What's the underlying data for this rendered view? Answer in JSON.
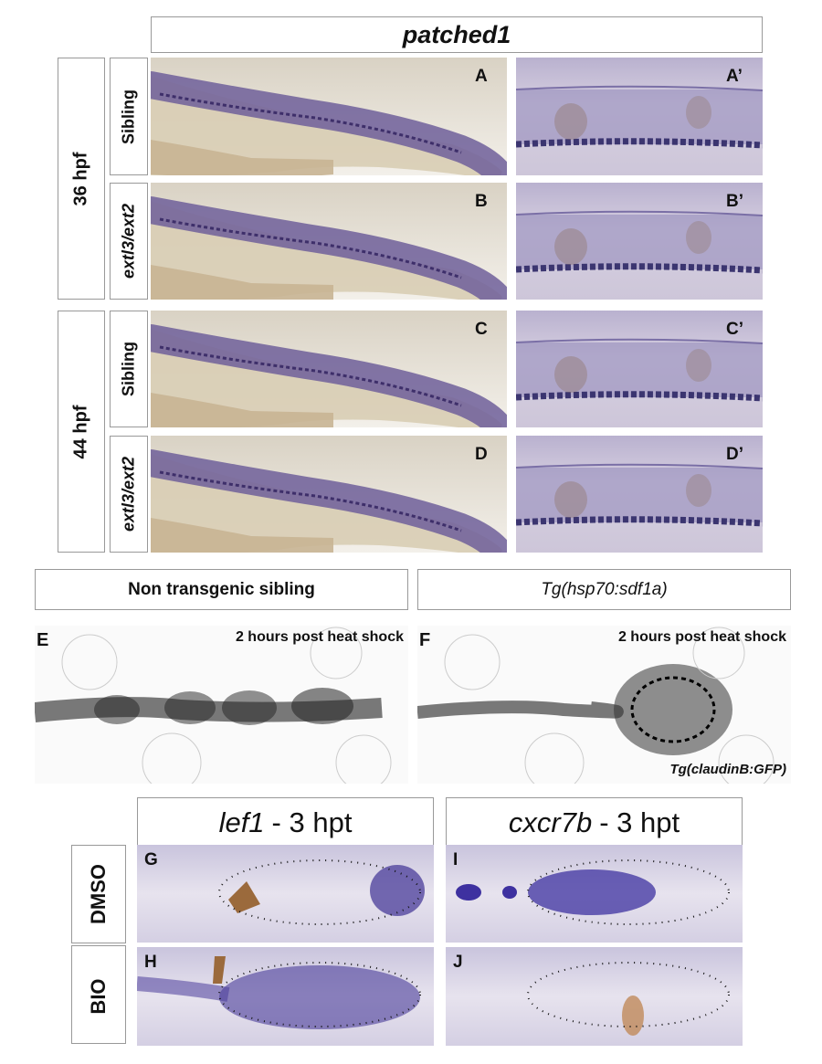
{
  "top": {
    "title": "patched1",
    "groups": [
      {
        "label": "36 hpf",
        "rows": [
          {
            "label": "Sibling",
            "panel": "A",
            "zoom": "A’"
          },
          {
            "label": "extl3/ext2",
            "panel": "B",
            "zoom": "B’"
          }
        ]
      },
      {
        "label": "44 hpf",
        "rows": [
          {
            "label": "Sibling",
            "panel": "C",
            "zoom": "C’"
          },
          {
            "label": "extl3/ext2",
            "panel": "D",
            "zoom": "D’"
          }
        ]
      }
    ]
  },
  "middle": {
    "columns": [
      {
        "header": "Non transgenic sibling",
        "panel": "E",
        "note": "2 hours post heat shock"
      },
      {
        "header": "Tg(hsp70:sdf1a)",
        "panel": "F",
        "note": "2 hours post heat shock",
        "footnote": "Tg(claudinB:GFP)"
      }
    ]
  },
  "bottom": {
    "columns": [
      {
        "gene": "lef1",
        "suffix": "- 3 hpt"
      },
      {
        "gene": "cxcr7b",
        "suffix": "- 3 hpt"
      }
    ],
    "rows": [
      {
        "label": "DMSO",
        "panels": [
          "G",
          "I"
        ]
      },
      {
        "label": "BIO",
        "panels": [
          "H",
          "J"
        ]
      }
    ]
  }
}
